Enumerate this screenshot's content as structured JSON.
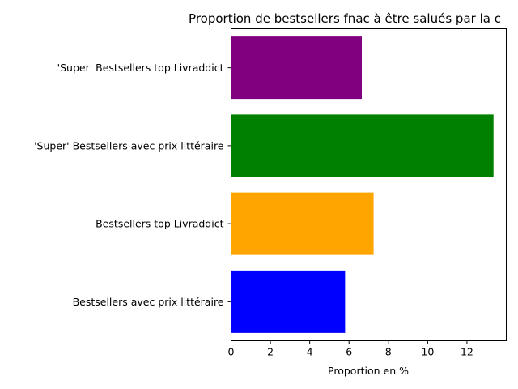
{
  "chart_data": {
    "type": "bar",
    "orientation": "horizontal",
    "title": "Proportion de bestsellers fnac à être salués par la c",
    "xlabel": "Proportion en %",
    "ylabel": "",
    "categories": [
      "Bestsellers avec prix littéraire",
      "Bestsellers top Livraddict",
      "'Super' Bestsellers avec prix littéraire",
      "'Super' Bestsellers top Livraddict"
    ],
    "values": [
      5.8,
      7.25,
      13.35,
      6.65
    ],
    "colors": [
      "#0000ff",
      "#ffa500",
      "#008000",
      "#800080"
    ],
    "xlim": [
      0,
      14.0
    ],
    "xticks": [
      "0",
      "2",
      "4",
      "6",
      "8",
      "10",
      "12"
    ],
    "grid": false,
    "legend": "none"
  }
}
